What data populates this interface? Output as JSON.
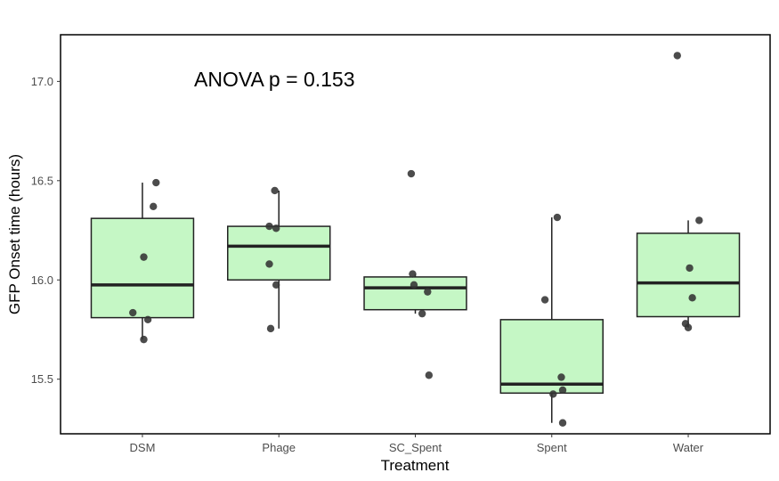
{
  "chart_data": {
    "type": "box",
    "xlabel": "Treatment",
    "ylabel": "GFP Onset time (hours)",
    "annotation": "ANOVA p = 0.153",
    "categories": [
      "DSM",
      "Phage",
      "SC_Spent",
      "Spent",
      "Water"
    ],
    "yticks": [
      15.5,
      16.0,
      16.5,
      17.0
    ],
    "ytick_labels": [
      "15.5",
      "16.0",
      "16.5",
      "17.0"
    ],
    "ylim": [
      15.225,
      17.235
    ],
    "grid": false,
    "legend": "none",
    "box_fill": "#c5f7c5",
    "box_stroke": "#222222",
    "point_color": "#333333",
    "boxes": [
      {
        "category": "DSM",
        "whisker_low": 15.7,
        "q1": 15.81,
        "median": 15.975,
        "q3": 16.31,
        "whisker_high": 16.49
      },
      {
        "category": "Phage",
        "whisker_low": 15.755,
        "q1": 16.0,
        "median": 16.17,
        "q3": 16.27,
        "whisker_high": 16.45
      },
      {
        "category": "SC_Spent",
        "whisker_low": 15.83,
        "q1": 15.85,
        "median": 15.96,
        "q3": 16.015,
        "whisker_high": 16.03
      },
      {
        "category": "Spent",
        "whisker_low": 15.28,
        "q1": 15.43,
        "median": 15.475,
        "q3": 15.8,
        "whisker_high": 16.315
      },
      {
        "category": "Water",
        "whisker_low": 15.76,
        "q1": 15.815,
        "median": 15.985,
        "q3": 16.235,
        "whisker_high": 16.3
      }
    ],
    "points": [
      {
        "category": "DSM",
        "values": [
          16.49,
          16.37,
          16.115,
          15.835,
          15.8,
          15.7
        ],
        "jitter": [
          0.1,
          0.08,
          0.01,
          -0.07,
          0.04,
          0.01
        ]
      },
      {
        "category": "Phage",
        "values": [
          16.45,
          16.27,
          16.26,
          16.08,
          15.975,
          15.755
        ],
        "jitter": [
          -0.03,
          -0.07,
          -0.02,
          -0.07,
          -0.02,
          -0.06
        ]
      },
      {
        "category": "SC_Spent",
        "values": [
          16.535,
          16.03,
          15.975,
          15.94,
          15.83,
          15.52
        ],
        "jitter": [
          -0.03,
          -0.02,
          -0.01,
          0.09,
          0.05,
          0.1
        ]
      },
      {
        "category": "Spent",
        "values": [
          16.315,
          15.9,
          15.51,
          15.445,
          15.425,
          15.28
        ],
        "jitter": [
          0.04,
          -0.05,
          0.07,
          0.08,
          0.01,
          0.08
        ]
      },
      {
        "category": "Water",
        "values": [
          17.13,
          16.3,
          16.06,
          15.91,
          15.78,
          15.76
        ],
        "jitter": [
          -0.08,
          0.08,
          0.01,
          0.03,
          -0.02,
          0.0
        ]
      }
    ]
  }
}
